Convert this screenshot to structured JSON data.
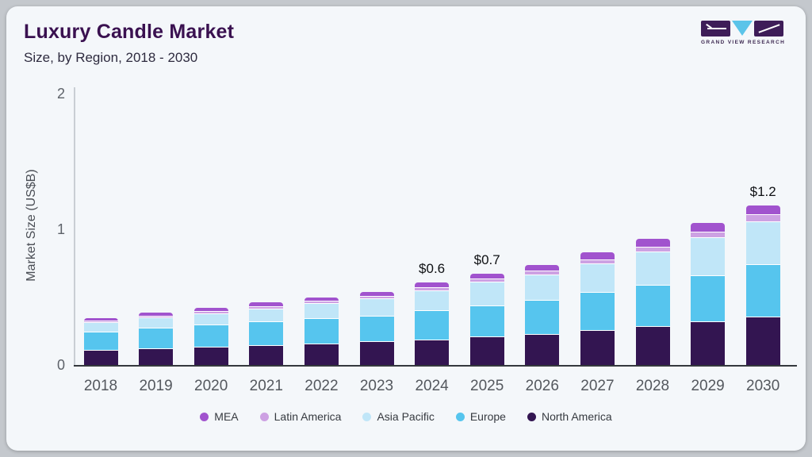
{
  "header": {
    "title": "Luxury Candle Market",
    "subtitle": "Size, by Region, 2018 - 2030",
    "logo_text": "GRAND VIEW RESEARCH"
  },
  "colors": {
    "page_bg": "#c4c8cd",
    "card_bg": "#f4f7fa",
    "title": "#3a1150",
    "brand_dark": "#3e1d58",
    "brand_blue": "#5bc4e9",
    "baseline": "#34383d",
    "axis_line": "#c9ced4"
  },
  "chart_data": {
    "type": "bar",
    "stacked": true,
    "title": "Luxury Candle Market",
    "subtitle": "Size, by Region, 2018 - 2030",
    "ylabel": "Market Size (US$B)",
    "units": "US$B",
    "ylim": [
      0,
      2
    ],
    "yticks": [
      0,
      1,
      2
    ],
    "grid": false,
    "legend_position": "bottom",
    "categories": [
      "2018",
      "2019",
      "2020",
      "2021",
      "2022",
      "2023",
      "2024",
      "2025",
      "2026",
      "2027",
      "2028",
      "2029",
      "2030"
    ],
    "series": [
      {
        "name": "North America",
        "color": "#331551",
        "values": [
          0.107,
          0.12,
          0.131,
          0.143,
          0.155,
          0.168,
          0.181,
          0.203,
          0.222,
          0.252,
          0.282,
          0.315,
          0.35
        ]
      },
      {
        "name": "Europe",
        "color": "#56c5ee",
        "values": [
          0.135,
          0.147,
          0.159,
          0.17,
          0.182,
          0.192,
          0.215,
          0.23,
          0.252,
          0.278,
          0.306,
          0.341,
          0.39
        ]
      },
      {
        "name": "Asia Pacific",
        "color": "#c0e6f8",
        "values": [
          0.068,
          0.077,
          0.087,
          0.098,
          0.111,
          0.125,
          0.15,
          0.175,
          0.188,
          0.215,
          0.245,
          0.28,
          0.316
        ]
      },
      {
        "name": "Latin America",
        "color": "#cda1e3",
        "values": [
          0.013,
          0.015,
          0.016,
          0.018,
          0.019,
          0.021,
          0.023,
          0.025,
          0.028,
          0.03,
          0.034,
          0.038,
          0.048
        ]
      },
      {
        "name": "MEA",
        "color": "#a153ce",
        "values": [
          0.022,
          0.026,
          0.028,
          0.031,
          0.033,
          0.035,
          0.038,
          0.04,
          0.048,
          0.054,
          0.063,
          0.072,
          0.072
        ]
      }
    ],
    "legend_order": [
      "MEA",
      "Latin America",
      "Asia Pacific",
      "Europe",
      "North America"
    ],
    "bar_labels": {
      "2024": "$0.6",
      "2025": "$0.7",
      "2030": "$1.2"
    }
  }
}
